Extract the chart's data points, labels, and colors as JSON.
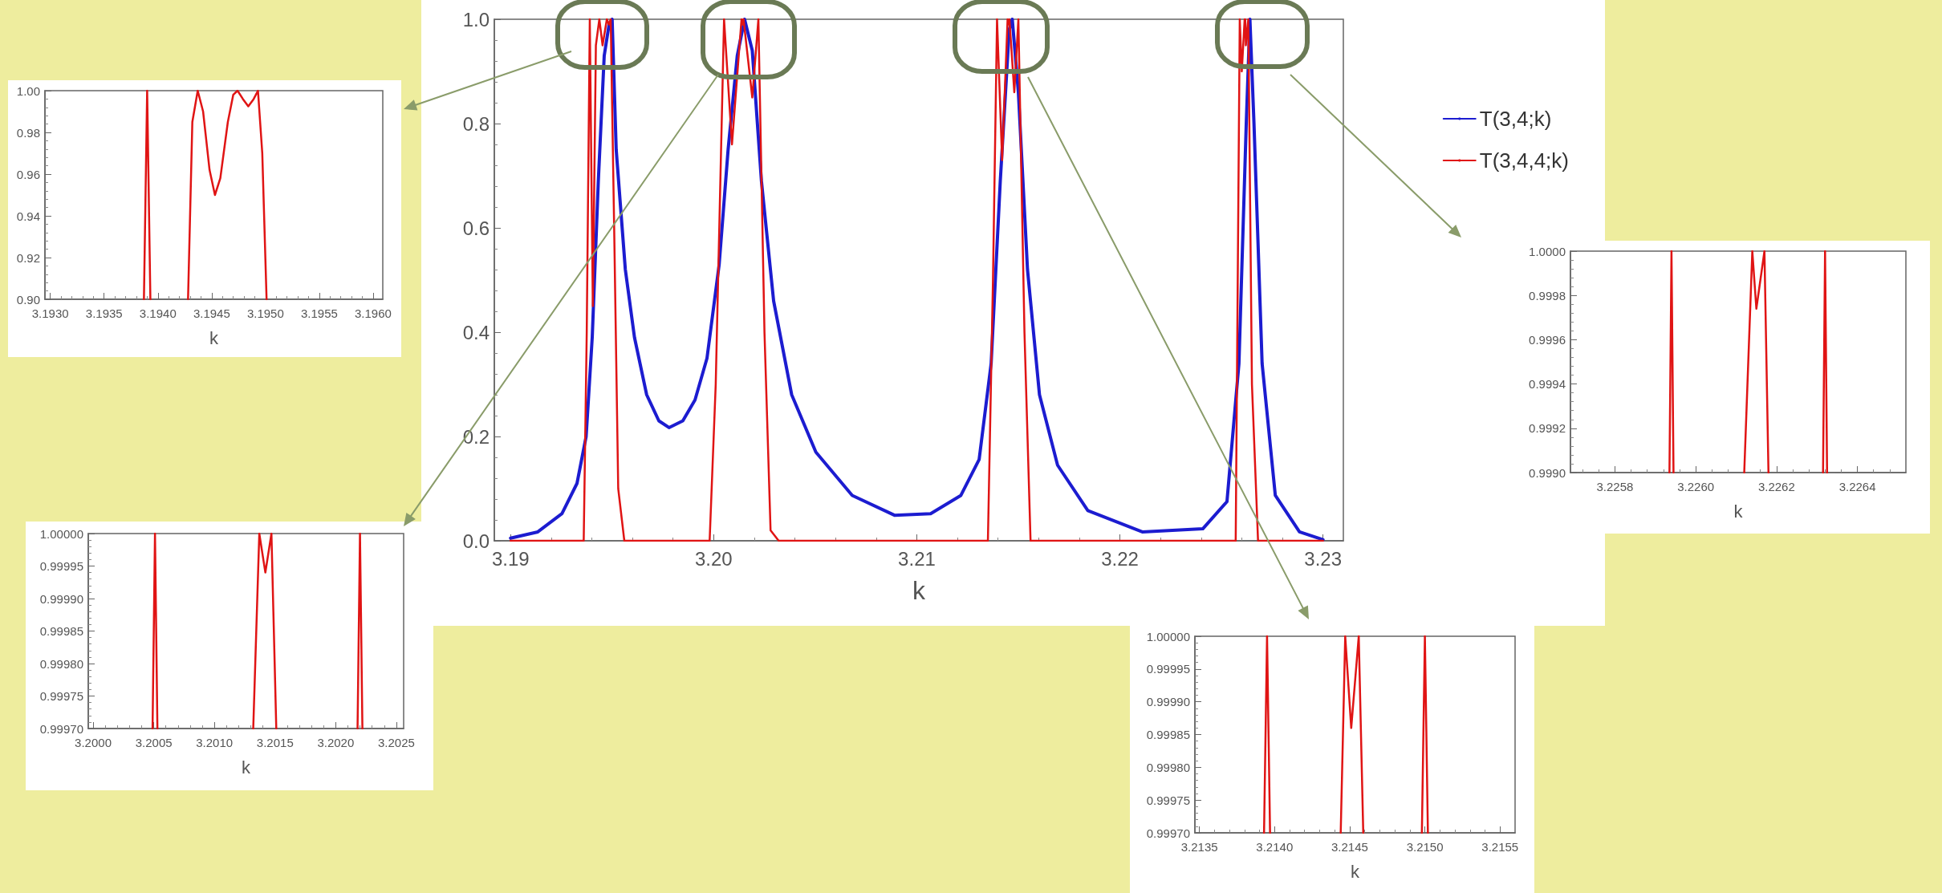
{
  "chart_data": [
    {
      "type": "line",
      "xlabel": "k",
      "xlim": [
        3.1892,
        3.231
      ],
      "ylim": [
        0,
        1
      ],
      "xticks": [
        3.19,
        {
          "value": 3.2,
          "label": "3.20"
        },
        3.21,
        3.22,
        3.23
      ],
      "yticks": [
        {
          "value": 0,
          "label": "0.0"
        },
        0.2,
        0.4,
        0.6,
        0.8,
        {
          "value": 1,
          "label": "1.0"
        }
      ],
      "grid": false,
      "legend": "right",
      "marker": "none",
      "line_style": "solid",
      "series": [
        {
          "name": "T(3,4;k)",
          "color": "#1c1cd0",
          "x": [
            3.19,
            3.19134,
            3.19253,
            3.19327,
            3.19372,
            3.19402,
            3.19432,
            3.19461,
            3.19485,
            3.195,
            3.1952,
            3.19565,
            3.1961,
            3.1967,
            3.1973,
            3.1978,
            3.19848,
            3.19908,
            3.19967,
            3.20027,
            3.20071,
            3.20116,
            3.20152,
            3.2019,
            3.20235,
            3.20295,
            3.20384,
            3.20503,
            3.20682,
            3.2089,
            3.21068,
            3.21217,
            3.21307,
            3.21366,
            3.21411,
            3.21455,
            3.2147,
            3.215,
            3.21545,
            3.21604,
            3.21693,
            3.21842,
            3.2211,
            3.22408,
            3.22527,
            3.22586,
            3.22622,
            3.2264,
            3.2266,
            3.227,
            3.22765,
            3.22884,
            3.23
          ],
          "values": [
            0.005,
            0.017,
            0.052,
            0.11,
            0.2,
            0.39,
            0.69,
            0.93,
            0.99,
            1.0,
            0.75,
            0.52,
            0.39,
            0.28,
            0.23,
            0.217,
            0.23,
            0.27,
            0.35,
            0.53,
            0.75,
            0.93,
            1.0,
            0.94,
            0.69,
            0.46,
            0.28,
            0.17,
            0.087,
            0.049,
            0.052,
            0.087,
            0.156,
            0.34,
            0.69,
            0.98,
            1.0,
            0.86,
            0.52,
            0.28,
            0.145,
            0.058,
            0.017,
            0.023,
            0.075,
            0.34,
            0.8,
            1.0,
            0.8,
            0.34,
            0.087,
            0.017,
            0.002
          ]
        },
        {
          "name": "T(3,4,4;k)",
          "color": "#e01414",
          "x": [
            3.19,
            3.1936,
            3.19375,
            3.1939,
            3.19405,
            3.1942,
            3.19437,
            3.19453,
            3.19474,
            3.19484,
            3.19493,
            3.1951,
            3.1953,
            3.1956,
            3.1998,
            3.2001,
            3.20051,
            3.2009,
            3.20137,
            3.20142,
            3.20147,
            3.2019,
            3.2022,
            3.2025,
            3.2028,
            3.2032,
            3.2135,
            3.21375,
            3.21395,
            3.2142,
            3.21447,
            3.21451,
            3.21456,
            3.2148,
            3.215,
            3.2153,
            3.2156,
            3.2257,
            3.2259,
            3.226,
            3.22614,
            3.22617,
            3.2262,
            3.22632,
            3.2265,
            3.2268,
            3.23
          ],
          "values": [
            0,
            0,
            0.4,
            1.0,
            0.45,
            0.95,
            1.0,
            0.95,
            1.0,
            0.99,
            1.0,
            0.6,
            0.1,
            0,
            0,
            0.3,
            1.0,
            0.76,
            1.0,
            0.99,
            1.0,
            0.85,
            1.0,
            0.4,
            0.02,
            0,
            0,
            0.5,
            1.0,
            0.73,
            1.0,
            0.99,
            1.0,
            0.86,
            1.0,
            0.4,
            0,
            0,
            1.0,
            0.9,
            1.0,
            1.0,
            0.95,
            1.0,
            0.3,
            0,
            0
          ]
        }
      ]
    },
    {
      "type": "line",
      "xlabel": "k",
      "xlim": [
        3.19295,
        3.19609
      ],
      "ylim": [
        0.9,
        1
      ],
      "xticks": [
        {
          "value": 3.193,
          "label": "3.1930"
        },
        3.1935,
        {
          "value": 3.194,
          "label": "3.1940"
        },
        3.1945,
        {
          "value": 3.195,
          "label": "3.1950"
        },
        3.1955,
        {
          "value": 3.196,
          "label": "3.1960"
        }
      ],
      "yticks": [
        {
          "value": 0.9,
          "label": "0.90"
        },
        0.92,
        0.94,
        0.96,
        0.98,
        {
          "value": 1,
          "label": "1.00"
        }
      ],
      "grid": false,
      "marker": "none",
      "line_style": "solid",
      "series": [
        {
          "color": "#e01414",
          "x": [
            3.19387,
            3.1939,
            3.19393,
            3.1941,
            3.19428,
            3.19432,
            3.19437,
            3.19442,
            3.19448,
            3.19453,
            3.19458,
            3.19465,
            3.1947,
            3.19474,
            3.19479,
            3.19484,
            3.19489,
            3.19493,
            3.19497,
            3.19501
          ],
          "values": [
            0.9,
            1.0,
            0.9,
            null,
            0.9,
            0.985,
            1.0,
            0.99,
            0.962,
            0.95,
            0.958,
            0.985,
            0.998,
            1.0,
            0.996,
            0.9925,
            0.996,
            1.0,
            0.97,
            0.9
          ]
        }
      ]
    },
    {
      "type": "line",
      "xlabel": "k",
      "xlim": [
        3.19996,
        3.20256
      ],
      "ylim": [
        0.9997,
        1
      ],
      "xticks": [
        {
          "value": 3.2,
          "label": "3.2000"
        },
        3.2005,
        {
          "value": 3.201,
          "label": "3.2010"
        },
        3.2015,
        {
          "value": 3.202,
          "label": "3.2020"
        },
        3.2025
      ],
      "yticks": [
        {
          "value": 0.9997,
          "label": "0.99970"
        },
        0.99975,
        {
          "value": 0.9998,
          "label": "0.99980"
        },
        0.99985,
        {
          "value": 0.9999,
          "label": "0.99990"
        },
        0.99995,
        {
          "value": 1,
          "label": "1.00000"
        }
      ],
      "grid": false,
      "marker": "none",
      "line_style": "solid",
      "series": [
        {
          "color": "#e01414",
          "x": [
            3.20049,
            3.20051,
            3.20053,
            3.2009,
            3.20132,
            3.20137,
            3.20142,
            3.20147,
            3.20151,
            3.2018,
            3.20218,
            3.2022,
            3.20222
          ],
          "values": [
            0.9997,
            1.0,
            0.9997,
            null,
            0.9997,
            1.0,
            0.99994,
            1.0,
            0.9997,
            null,
            0.9997,
            1.0,
            0.9997
          ]
        }
      ]
    },
    {
      "type": "line",
      "xlabel": "k",
      "xlim": [
        3.21347,
        3.2156
      ],
      "ylim": [
        0.9997,
        1
      ],
      "xticks": [
        3.2135,
        {
          "value": 3.214,
          "label": "3.2140"
        },
        3.2145,
        {
          "value": 3.215,
          "label": "3.2150"
        },
        3.2155
      ],
      "yticks": [
        {
          "value": 0.9997,
          "label": "0.99970"
        },
        0.99975,
        {
          "value": 0.9998,
          "label": "0.99980"
        },
        0.99985,
        {
          "value": 0.9999,
          "label": "0.99990"
        },
        0.99995,
        {
          "value": 1,
          "label": "1.00000"
        }
      ],
      "grid": false,
      "marker": "none",
      "line_style": "solid",
      "series": [
        {
          "color": "#e01414",
          "x": [
            3.21393,
            3.21395,
            3.21397,
            3.2142,
            3.21444,
            3.21447,
            3.21451,
            3.21456,
            3.21459,
            3.2148,
            3.21498,
            3.215,
            3.21502
          ],
          "values": [
            0.9997,
            1.0,
            0.9997,
            null,
            0.9997,
            1.0,
            0.99986,
            1.0,
            0.9997,
            null,
            0.9997,
            1.0,
            0.9997
          ]
        }
      ]
    },
    {
      "type": "line",
      "xlabel": "k",
      "xlim": [
        3.22569,
        3.22652
      ],
      "ylim": [
        0.999,
        1
      ],
      "xticks": [
        3.2258,
        {
          "value": 3.226,
          "label": "3.2260"
        },
        3.2262,
        3.2264
      ],
      "yticks": [
        {
          "value": 0.999,
          "label": "0.9990"
        },
        0.9992,
        0.9994,
        0.9996,
        0.9998,
        {
          "value": 1,
          "label": "1.0000"
        }
      ],
      "grid": false,
      "marker": "none",
      "line_style": "solid",
      "series": [
        {
          "color": "#e01414",
          "x": [
            3.225935,
            3.22594,
            3.225945,
            3.22603,
            3.22612,
            3.22614,
            3.22615,
            3.22617,
            3.22618,
            3.22625,
            3.226315,
            3.22632,
            3.226325
          ],
          "values": [
            0.999,
            1.0,
            0.999,
            null,
            0.999,
            1.0,
            0.99974,
            1.0,
            0.999,
            null,
            0.999,
            1.0,
            0.999
          ]
        }
      ]
    }
  ]
}
